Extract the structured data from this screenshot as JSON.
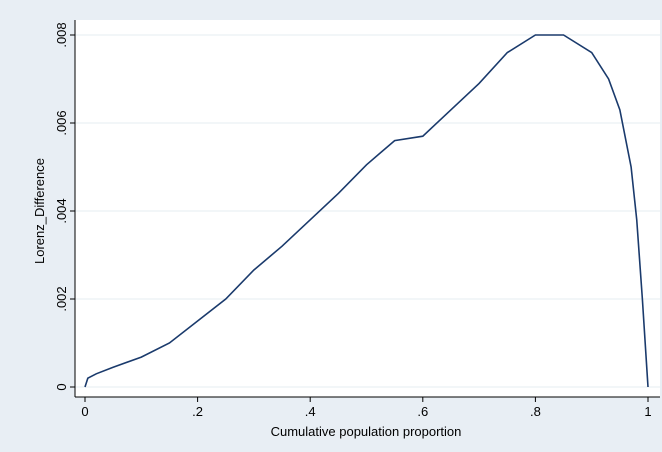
{
  "chart_data": {
    "type": "line",
    "xlabel": "Cumulative population proportion",
    "ylabel": "Lorenz_Difference",
    "x": [
      0,
      0.005,
      0.02,
      0.05,
      0.1,
      0.15,
      0.2,
      0.25,
      0.3,
      0.35,
      0.4,
      0.45,
      0.5,
      0.55,
      0.6,
      0.65,
      0.7,
      0.75,
      0.8,
      0.85,
      0.9,
      0.93,
      0.95,
      0.97,
      0.98,
      0.99,
      1
    ],
    "series": [
      {
        "name": "Lorenz_Difference",
        "color": "#1a3a6c",
        "values": [
          0,
          0.0002,
          0.0003,
          0.00045,
          0.00068,
          0.001,
          0.0015,
          0.002,
          0.00266,
          0.0032,
          0.0038,
          0.0044,
          0.00505,
          0.0056,
          0.0057,
          0.0063,
          0.0069,
          0.0076,
          0.008,
          0.008,
          0.0076,
          0.007,
          0.0063,
          0.005,
          0.0038,
          0.002,
          0
        ]
      }
    ],
    "xlim": [
      0,
      1
    ],
    "ylim": [
      0,
      0.008
    ],
    "xticks": [
      0,
      {
        "value": 0.2,
        "label": ".2"
      },
      {
        "value": 0.4,
        "label": ".4"
      },
      {
        "value": 0.6,
        "label": ".6"
      },
      {
        "value": 0.8,
        "label": ".8"
      },
      1
    ],
    "yticks": [
      0,
      {
        "value": 0.002,
        "label": ".002"
      },
      {
        "value": 0.004,
        "label": ".004"
      },
      {
        "value": 0.006,
        "label": ".006"
      },
      {
        "value": 0.008,
        "label": ".008"
      }
    ],
    "grid": true
  }
}
